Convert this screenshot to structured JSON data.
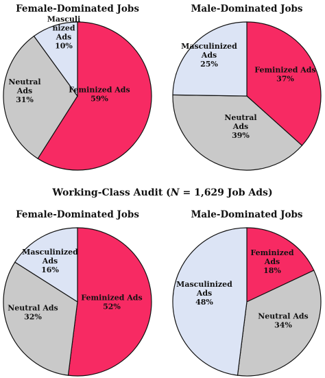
{
  "colors": {
    "feminized": "#F72A63",
    "neutral": "#C9C9C9",
    "masculinized": "#DCE4F5",
    "stroke": "#111111"
  },
  "section_title": {
    "prefix": "Working-Class Audit (",
    "n": "N",
    "suffix": " = 1,629 Job Ads)"
  },
  "chart_data": [
    {
      "type": "pie",
      "title": "Female-Dominated Jobs",
      "slices": [
        {
          "name": "Feminized Ads",
          "value": 59,
          "label_lines": [
            "Feminized Ads",
            "59%"
          ],
          "color": "#F72A63"
        },
        {
          "name": "Neutral Ads",
          "value": 31,
          "label_lines": [
            "Neutral",
            "Ads",
            "31%"
          ],
          "color": "#C9C9C9"
        },
        {
          "name": "Masculinized Ads",
          "value": 10,
          "label_lines": [
            "Masculi",
            "nized",
            "Ads",
            "10%"
          ],
          "color": "#DCE4F5"
        }
      ]
    },
    {
      "type": "pie",
      "title": "Male-Dominated Jobs",
      "slices": [
        {
          "name": "Feminized Ads",
          "value": 37,
          "label_lines": [
            "Feminized Ads",
            "37%"
          ],
          "color": "#F72A63"
        },
        {
          "name": "Neutral Ads",
          "value": 39,
          "label_lines": [
            "Neutral",
            "Ads",
            "39%"
          ],
          "color": "#C9C9C9"
        },
        {
          "name": "Masculinized Ads",
          "value": 25,
          "label_lines": [
            "Masculinized",
            "Ads",
            "25%"
          ],
          "color": "#DCE4F5"
        }
      ]
    },
    {
      "type": "pie",
      "title": "Female-Dominated Jobs",
      "slices": [
        {
          "name": "Feminized Ads",
          "value": 52,
          "label_lines": [
            "Feminized Ads",
            "52%"
          ],
          "color": "#F72A63"
        },
        {
          "name": "Neutral Ads",
          "value": 32,
          "label_lines": [
            "Neutral Ads",
            "32%"
          ],
          "color": "#C9C9C9"
        },
        {
          "name": "Masculinized Ads",
          "value": 16,
          "label_lines": [
            "Masculinized",
            "Ads",
            "16%"
          ],
          "color": "#DCE4F5"
        }
      ]
    },
    {
      "type": "pie",
      "title": "Male-Dominated Jobs",
      "slices": [
        {
          "name": "Feminized Ads",
          "value": 18,
          "label_lines": [
            "Feminized",
            "Ads",
            "18%"
          ],
          "color": "#F72A63"
        },
        {
          "name": "Neutral Ads",
          "value": 34,
          "label_lines": [
            "Neutral Ads",
            "34%"
          ],
          "color": "#C9C9C9"
        },
        {
          "name": "Masculinized Ads",
          "value": 48,
          "label_lines": [
            "Masculinized",
            "Ads",
            "48%"
          ],
          "color": "#DCE4F5"
        }
      ]
    }
  ]
}
